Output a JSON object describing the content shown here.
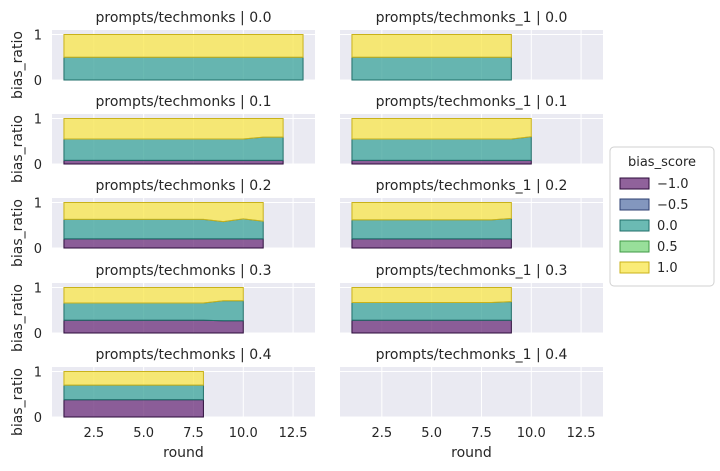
{
  "chart_data": {
    "type": "area",
    "stacked": true,
    "ylabel": "bias_ratio",
    "xlabel": "round",
    "xlim": [
      0.4,
      13.6
    ],
    "ylim": [
      0,
      1.1
    ],
    "x_ticks": [
      2.5,
      5.0,
      7.5,
      10.0,
      12.5
    ],
    "y_ticks": [
      0,
      1
    ],
    "grid": true,
    "legend": {
      "title": "bias_score",
      "placement": "right",
      "entries": [
        {
          "label": "−1.0",
          "color": "#6b2d7a"
        },
        {
          "label": "−0.5",
          "color": "#5a74a8"
        },
        {
          "label": "0.0",
          "color": "#3aa39a"
        },
        {
          "label": "0.5",
          "color": "#76d478"
        },
        {
          "label": "1.0",
          "color": "#f8e54a"
        }
      ]
    },
    "panels": [
      {
        "title": "prompts/techmonks | 0.0",
        "row": 0,
        "col": 0,
        "x": [
          1,
          13
        ],
        "bands": [
          {
            "bias_score": "0.0",
            "values": [
              0.5,
              0.5
            ]
          },
          {
            "bias_score": "1.0",
            "values": [
              0.5,
              0.5
            ]
          }
        ]
      },
      {
        "title": "prompts/techmonks_1 | 0.0",
        "row": 0,
        "col": 1,
        "x": [
          1,
          9
        ],
        "bands": [
          {
            "bias_score": "0.0",
            "values": [
              0.5,
              0.5
            ]
          },
          {
            "bias_score": "1.0",
            "values": [
              0.5,
              0.5
            ]
          }
        ]
      },
      {
        "title": "prompts/techmonks | 0.1",
        "row": 1,
        "col": 0,
        "x": [
          1,
          8,
          10,
          11,
          12
        ],
        "bands": [
          {
            "bias_score": "−1.0",
            "values": [
              0.08,
              0.08,
              0.08,
              0.08,
              0.08
            ]
          },
          {
            "bias_score": "0.0",
            "values": [
              0.47,
              0.47,
              0.47,
              0.51,
              0.51
            ]
          },
          {
            "bias_score": "1.0",
            "values": [
              0.45,
              0.45,
              0.45,
              0.41,
              0.41
            ]
          }
        ]
      },
      {
        "title": "prompts/techmonks_1 | 0.1",
        "row": 1,
        "col": 1,
        "x": [
          1,
          8,
          9,
          10
        ],
        "bands": [
          {
            "bias_score": "−1.0",
            "values": [
              0.08,
              0.08,
              0.08,
              0.08
            ]
          },
          {
            "bias_score": "0.0",
            "values": [
              0.47,
              0.47,
              0.47,
              0.52
            ]
          },
          {
            "bias_score": "1.0",
            "values": [
              0.45,
              0.45,
              0.45,
              0.4
            ]
          }
        ]
      },
      {
        "title": "prompts/techmonks | 0.2",
        "row": 2,
        "col": 0,
        "x": [
          1,
          7,
          8,
          9,
          10,
          11
        ],
        "bands": [
          {
            "bias_score": "−1.0",
            "values": [
              0.2,
              0.2,
              0.2,
              0.2,
              0.2,
              0.2
            ]
          },
          {
            "bias_score": "0.0",
            "values": [
              0.43,
              0.43,
              0.43,
              0.38,
              0.44,
              0.39
            ]
          },
          {
            "bias_score": "1.0",
            "values": [
              0.37,
              0.37,
              0.37,
              0.42,
              0.36,
              0.41
            ]
          }
        ]
      },
      {
        "title": "prompts/techmonks_1 | 0.2",
        "row": 2,
        "col": 1,
        "x": [
          1,
          8,
          9
        ],
        "bands": [
          {
            "bias_score": "−1.0",
            "values": [
              0.2,
              0.2,
              0.2
            ]
          },
          {
            "bias_score": "0.0",
            "values": [
              0.42,
              0.42,
              0.45
            ]
          },
          {
            "bias_score": "1.0",
            "values": [
              0.38,
              0.38,
              0.35
            ]
          }
        ]
      },
      {
        "title": "prompts/techmonks | 0.3",
        "row": 3,
        "col": 0,
        "x": [
          1,
          8,
          9,
          10
        ],
        "bands": [
          {
            "bias_score": "−1.0",
            "values": [
              0.28,
              0.28,
              0.27,
              0.27
            ]
          },
          {
            "bias_score": "0.0",
            "values": [
              0.38,
              0.38,
              0.44,
              0.44
            ]
          },
          {
            "bias_score": "1.0",
            "values": [
              0.34,
              0.34,
              0.29,
              0.29
            ]
          }
        ]
      },
      {
        "title": "prompts/techmonks_1 | 0.3",
        "row": 3,
        "col": 1,
        "x": [
          1,
          8,
          9
        ],
        "bands": [
          {
            "bias_score": "−1.0",
            "values": [
              0.28,
              0.28,
              0.28
            ]
          },
          {
            "bias_score": "0.0",
            "values": [
              0.39,
              0.39,
              0.41
            ]
          },
          {
            "bias_score": "1.0",
            "values": [
              0.33,
              0.33,
              0.31
            ]
          }
        ]
      },
      {
        "title": "prompts/techmonks | 0.4",
        "row": 4,
        "col": 0,
        "x": [
          1,
          8
        ],
        "bands": [
          {
            "bias_score": "−1.0",
            "values": [
              0.38,
              0.38
            ]
          },
          {
            "bias_score": "0.0",
            "values": [
              0.32,
              0.32
            ]
          },
          {
            "bias_score": "1.0",
            "values": [
              0.3,
              0.3
            ]
          }
        ]
      },
      {
        "title": "prompts/techmonks_1 | 0.4",
        "row": 4,
        "col": 1,
        "x": [],
        "bands": []
      }
    ]
  }
}
